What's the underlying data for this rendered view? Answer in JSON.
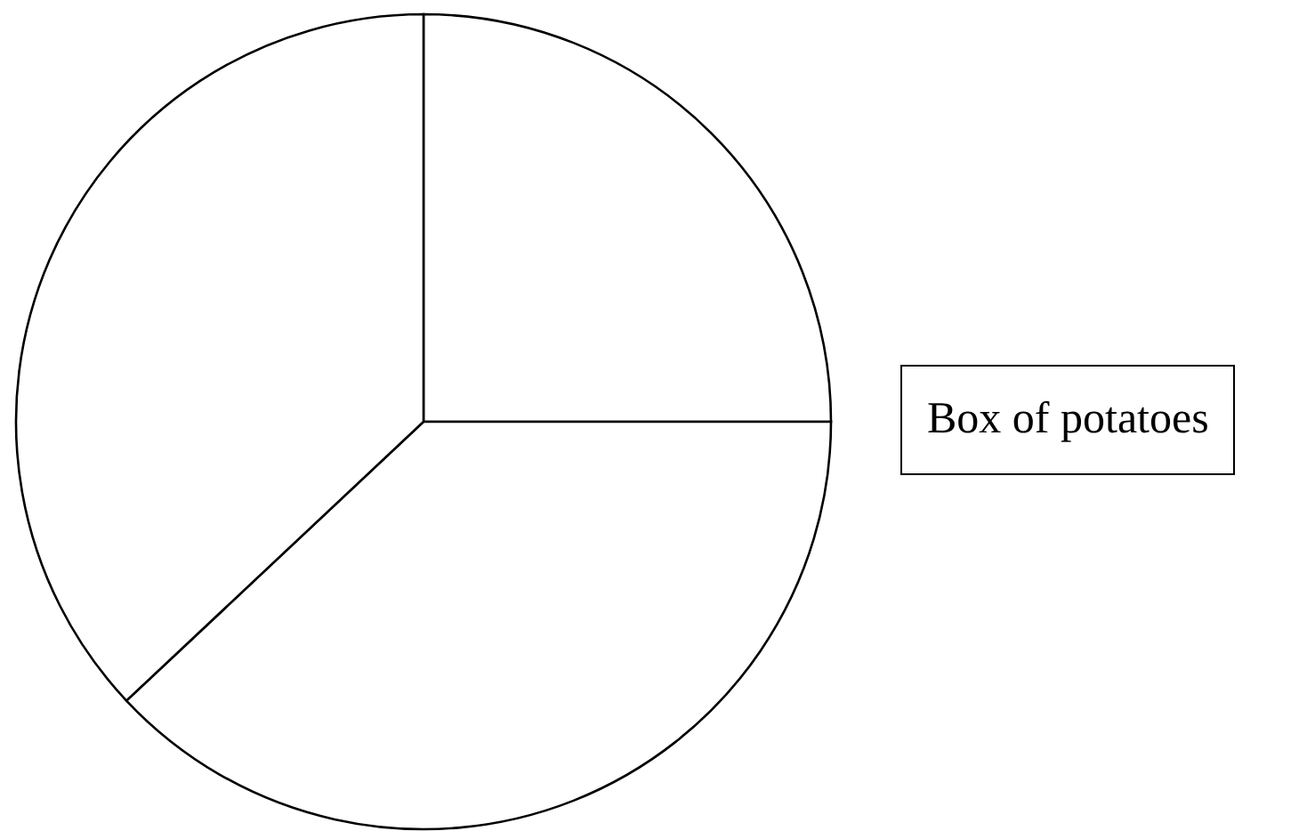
{
  "chart_data": {
    "type": "pie",
    "categories": [
      null,
      null,
      null
    ],
    "values": [
      25,
      38,
      37
    ],
    "colors": [
      "#ffffff",
      "#ffffff",
      "#ffffff"
    ],
    "annotations": [
      "Box of potatoes"
    ]
  }
}
